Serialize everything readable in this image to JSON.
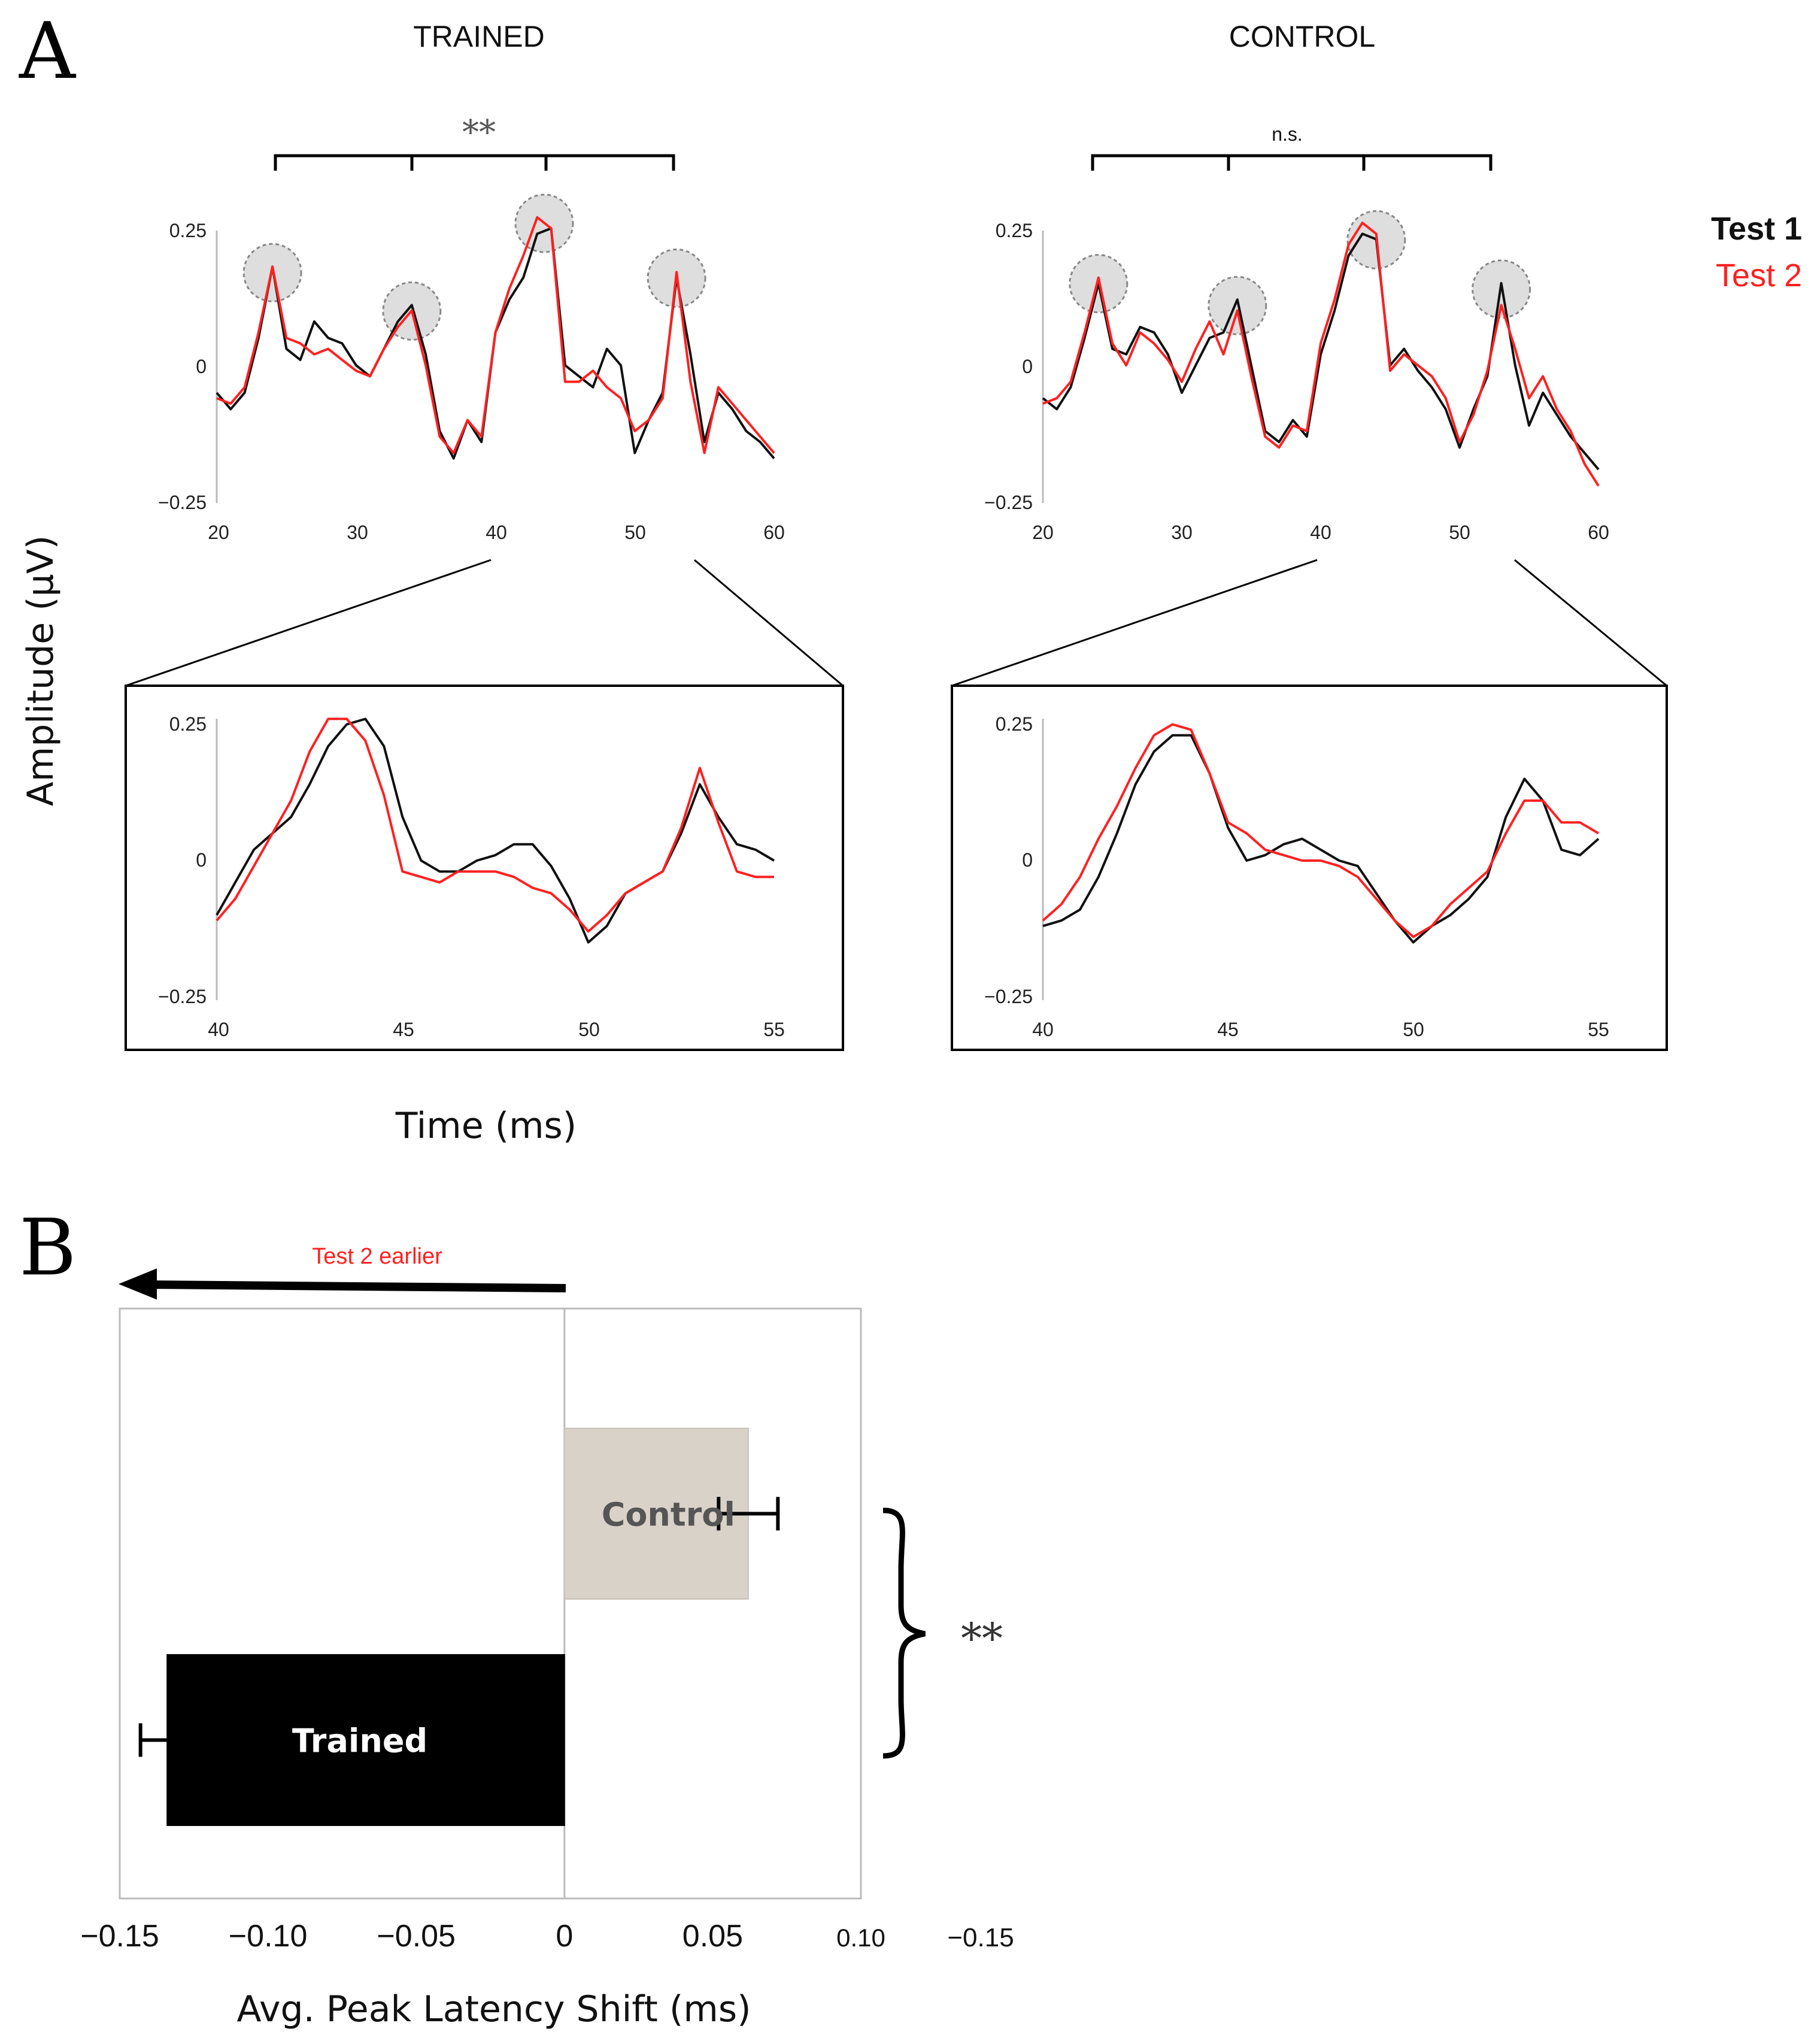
{
  "panel_labels": {
    "a": "A",
    "b": "B"
  },
  "panel_a": {
    "titles": {
      "trained": "TRAINED",
      "control": "CONTROL"
    },
    "significance": {
      "trained": "**",
      "control": "n.s."
    },
    "ylabel": "Amplitude (µV)",
    "xlabel": "Time (ms)",
    "legend": [
      {
        "label": "Test 1",
        "color": "#111111"
      },
      {
        "label": "Test 2",
        "color": "#ff2020"
      }
    ],
    "y_ticks": [
      "0.25",
      "0",
      "−0.25"
    ],
    "overview_x_ticks": [
      "20",
      "30",
      "40",
      "50",
      "60"
    ],
    "zoom_x_ticks": [
      "40",
      "45",
      "50",
      "55"
    ]
  },
  "panel_b": {
    "arrow_label": "Test 2 earlier",
    "significance": "**",
    "xlabel": "Avg. Peak Latency Shift (ms)",
    "x_ticks": [
      "−0.15",
      "−0.10",
      "−0.05",
      "0",
      "0.05",
      "0.10"
    ]
  },
  "chart_data": [
    {
      "type": "line",
      "title": "TRAINED",
      "xlabel": "Time (ms)",
      "ylabel": "Amplitude (µV)",
      "xlim": [
        20,
        60
      ],
      "ylim": [
        -0.25,
        0.25
      ],
      "peak_markers_x": [
        24,
        34,
        43.5,
        53
      ],
      "series": [
        {
          "name": "Test 1",
          "color": "#111111",
          "x": [
            20,
            21,
            22,
            23,
            24,
            25,
            26,
            27,
            28,
            29,
            30,
            31,
            32,
            33,
            34,
            35,
            36,
            37,
            38,
            39,
            40,
            41,
            42,
            43,
            44,
            45,
            46,
            47,
            48,
            49,
            50,
            51,
            52,
            53,
            54,
            55,
            56,
            57,
            58,
            59,
            60
          ],
          "y": [
            -0.05,
            -0.08,
            -0.05,
            0.05,
            0.18,
            0.03,
            0.01,
            0.08,
            0.05,
            0.04,
            0.0,
            -0.02,
            0.03,
            0.08,
            0.11,
            0.02,
            -0.12,
            -0.17,
            -0.1,
            -0.14,
            0.06,
            0.12,
            0.16,
            0.24,
            0.25,
            0.0,
            -0.02,
            -0.04,
            0.03,
            0.0,
            -0.16,
            -0.1,
            -0.05,
            0.16,
            0.02,
            -0.14,
            -0.05,
            -0.08,
            -0.12,
            -0.14,
            -0.17
          ]
        },
        {
          "name": "Test 2",
          "color": "#ff2020",
          "x": [
            20,
            21,
            22,
            23,
            24,
            25,
            26,
            27,
            28,
            29,
            30,
            31,
            32,
            33,
            34,
            35,
            36,
            37,
            38,
            39,
            40,
            41,
            42,
            43,
            44,
            45,
            46,
            47,
            48,
            49,
            50,
            51,
            52,
            53,
            54,
            55,
            56,
            57,
            58,
            59,
            60
          ],
          "y": [
            -0.06,
            -0.07,
            -0.04,
            0.06,
            0.18,
            0.05,
            0.04,
            0.02,
            0.03,
            0.01,
            -0.01,
            -0.02,
            0.03,
            0.07,
            0.1,
            0.0,
            -0.13,
            -0.16,
            -0.1,
            -0.13,
            0.06,
            0.14,
            0.2,
            0.27,
            0.25,
            -0.03,
            -0.03,
            -0.01,
            -0.04,
            -0.06,
            -0.12,
            -0.1,
            -0.06,
            0.17,
            -0.03,
            -0.16,
            -0.04,
            -0.07,
            -0.1,
            -0.13,
            -0.16
          ]
        }
      ]
    },
    {
      "type": "line",
      "title": "CONTROL",
      "xlabel": "Time (ms)",
      "ylabel": "Amplitude (µV)",
      "xlim": [
        20,
        60
      ],
      "ylim": [
        -0.25,
        0.25
      ],
      "peak_markers_x": [
        24,
        34,
        44,
        53
      ],
      "series": [
        {
          "name": "Test 1",
          "color": "#111111",
          "x": [
            20,
            21,
            22,
            23,
            24,
            25,
            26,
            27,
            28,
            29,
            30,
            31,
            32,
            33,
            34,
            35,
            36,
            37,
            38,
            39,
            40,
            41,
            42,
            43,
            44,
            45,
            46,
            47,
            48,
            49,
            50,
            51,
            52,
            53,
            54,
            55,
            56,
            57,
            58,
            59,
            60
          ],
          "y": [
            -0.06,
            -0.08,
            -0.04,
            0.05,
            0.15,
            0.03,
            0.02,
            0.07,
            0.06,
            0.02,
            -0.05,
            0.0,
            0.05,
            0.06,
            0.12,
            0.0,
            -0.12,
            -0.14,
            -0.1,
            -0.13,
            0.02,
            0.1,
            0.2,
            0.24,
            0.23,
            0.0,
            0.03,
            -0.01,
            -0.04,
            -0.08,
            -0.15,
            -0.08,
            -0.02,
            0.15,
            0.0,
            -0.11,
            -0.05,
            -0.09,
            -0.13,
            -0.16,
            -0.19
          ]
        },
        {
          "name": "Test 2",
          "color": "#ff2020",
          "x": [
            20,
            21,
            22,
            23,
            24,
            25,
            26,
            27,
            28,
            29,
            30,
            31,
            32,
            33,
            34,
            35,
            36,
            37,
            38,
            39,
            40,
            41,
            42,
            43,
            44,
            45,
            46,
            47,
            48,
            49,
            50,
            51,
            52,
            53,
            54,
            55,
            56,
            57,
            58,
            59,
            60
          ],
          "y": [
            -0.07,
            -0.06,
            -0.03,
            0.06,
            0.16,
            0.04,
            0.0,
            0.06,
            0.04,
            0.01,
            -0.03,
            0.03,
            0.08,
            0.02,
            0.1,
            -0.02,
            -0.13,
            -0.15,
            -0.11,
            -0.12,
            0.04,
            0.12,
            0.22,
            0.26,
            0.24,
            -0.01,
            0.02,
            0.0,
            -0.02,
            -0.06,
            -0.14,
            -0.09,
            -0.01,
            0.11,
            0.03,
            -0.06,
            -0.02,
            -0.08,
            -0.12,
            -0.18,
            -0.22
          ]
        }
      ]
    },
    {
      "type": "line",
      "title": "",
      "xlim": [
        40,
        55
      ],
      "ylim": [
        -0.25,
        0.25
      ],
      "series": [
        {
          "name": "Test 1",
          "color": "#111111",
          "x": [
            40,
            40.5,
            41,
            41.5,
            42,
            42.5,
            43,
            43.5,
            44,
            44.5,
            45,
            45.5,
            46,
            46.5,
            47,
            47.5,
            48,
            48.5,
            49,
            49.5,
            50,
            50.5,
            51,
            51.5,
            52,
            52.5,
            53,
            53.5,
            54,
            54.5,
            55
          ],
          "y": [
            -0.1,
            -0.04,
            0.02,
            0.05,
            0.08,
            0.14,
            0.21,
            0.25,
            0.26,
            0.21,
            0.08,
            0.0,
            -0.02,
            -0.02,
            0.0,
            0.01,
            0.03,
            0.03,
            -0.01,
            -0.07,
            -0.15,
            -0.12,
            -0.06,
            -0.04,
            -0.02,
            0.05,
            0.14,
            0.08,
            0.03,
            0.02,
            0.0
          ]
        },
        {
          "name": "Test 2",
          "color": "#ff2020",
          "x": [
            40,
            40.5,
            41,
            41.5,
            42,
            42.5,
            43,
            43.5,
            44,
            44.5,
            45,
            45.5,
            46,
            46.5,
            47,
            47.5,
            48,
            48.5,
            49,
            49.5,
            50,
            50.5,
            51,
            51.5,
            52,
            52.5,
            53,
            53.5,
            54,
            54.5,
            55
          ],
          "y": [
            -0.11,
            -0.07,
            -0.01,
            0.05,
            0.11,
            0.2,
            0.26,
            0.26,
            0.22,
            0.12,
            -0.02,
            -0.03,
            -0.04,
            -0.02,
            -0.02,
            -0.02,
            -0.03,
            -0.05,
            -0.06,
            -0.09,
            -0.13,
            -0.1,
            -0.06,
            -0.04,
            -0.02,
            0.06,
            0.17,
            0.07,
            -0.02,
            -0.03,
            -0.03
          ]
        }
      ]
    },
    {
      "type": "line",
      "title": "",
      "xlim": [
        40,
        55
      ],
      "ylim": [
        -0.25,
        0.25
      ],
      "series": [
        {
          "name": "Test 1",
          "color": "#111111",
          "x": [
            40,
            40.5,
            41,
            41.5,
            42,
            42.5,
            43,
            43.5,
            44,
            44.5,
            45,
            45.5,
            46,
            46.5,
            47,
            47.5,
            48,
            48.5,
            49,
            49.5,
            50,
            50.5,
            51,
            51.5,
            52,
            52.5,
            53,
            53.5,
            54,
            54.5,
            55
          ],
          "y": [
            -0.12,
            -0.11,
            -0.09,
            -0.03,
            0.05,
            0.14,
            0.2,
            0.23,
            0.23,
            0.16,
            0.06,
            0.0,
            0.01,
            0.03,
            0.04,
            0.02,
            0.0,
            -0.01,
            -0.06,
            -0.11,
            -0.15,
            -0.12,
            -0.1,
            -0.07,
            -0.03,
            0.08,
            0.15,
            0.11,
            0.02,
            0.01,
            0.04
          ]
        },
        {
          "name": "Test 2",
          "color": "#ff2020",
          "x": [
            40,
            40.5,
            41,
            41.5,
            42,
            42.5,
            43,
            43.5,
            44,
            44.5,
            45,
            45.5,
            46,
            46.5,
            47,
            47.5,
            48,
            48.5,
            49,
            49.5,
            50,
            50.5,
            51,
            51.5,
            52,
            52.5,
            53,
            53.5,
            54,
            54.5,
            55
          ],
          "y": [
            -0.11,
            -0.08,
            -0.03,
            0.04,
            0.1,
            0.17,
            0.23,
            0.25,
            0.24,
            0.16,
            0.07,
            0.05,
            0.02,
            0.01,
            0.0,
            0.0,
            -0.01,
            -0.03,
            -0.07,
            -0.11,
            -0.14,
            -0.12,
            -0.08,
            -0.05,
            -0.02,
            0.05,
            0.11,
            0.11,
            0.07,
            0.07,
            0.05
          ]
        }
      ]
    },
    {
      "type": "bar",
      "orientation": "horizontal",
      "xlabel": "Avg. Peak Latency Shift (ms)",
      "xlim": [
        -0.15,
        0.1
      ],
      "categories": [
        "Control",
        "Trained"
      ],
      "values": [
        0.062,
        -0.134
      ],
      "errors": [
        0.01,
        0.009
      ],
      "colors": [
        "#d9d2c8",
        "#000000"
      ],
      "label_colors": [
        "#555555",
        "#ffffff"
      ],
      "significance": "**"
    }
  ]
}
